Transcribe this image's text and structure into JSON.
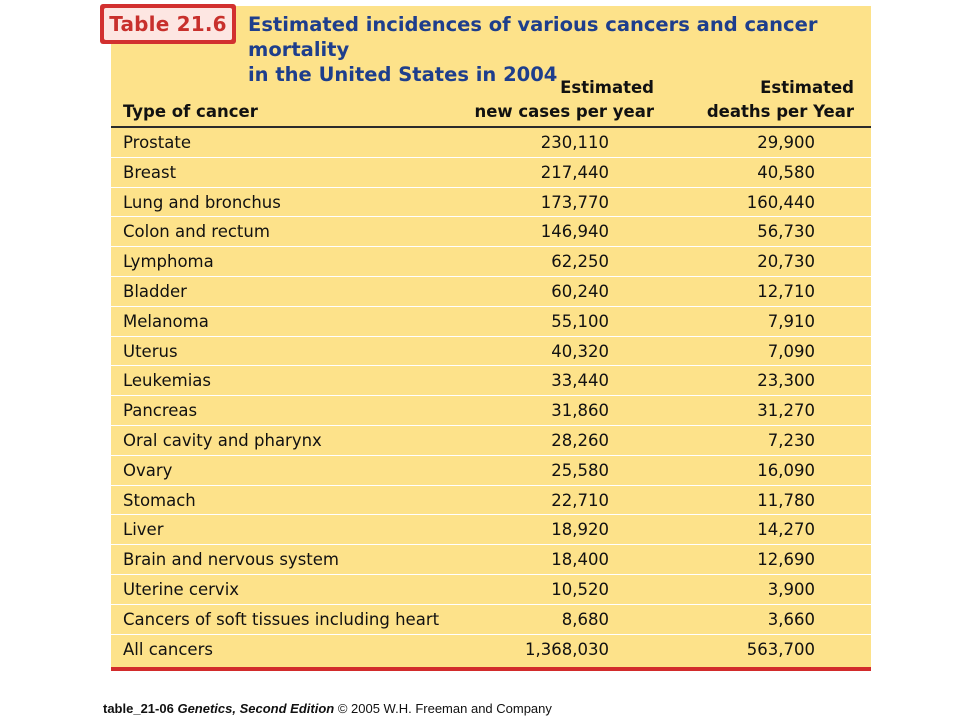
{
  "tab": {
    "label": "Table 21.6"
  },
  "caption": {
    "line1": "Estimated incidences of various cancers and cancer mortality",
    "line2": "in the United States in 2004"
  },
  "headers": {
    "type": "Type of cancer",
    "cases_line1": "Estimated",
    "cases_line2": "new cases per year",
    "deaths_line1": "Estimated",
    "deaths_line2": "deaths per Year"
  },
  "rows": [
    {
      "type": "Prostate",
      "cases": "230,110",
      "deaths": "29,900"
    },
    {
      "type": "Breast",
      "cases": "217,440",
      "deaths": "40,580"
    },
    {
      "type": "Lung and bronchus",
      "cases": "173,770",
      "deaths": "160,440"
    },
    {
      "type": "Colon and rectum",
      "cases": "146,940",
      "deaths": "56,730"
    },
    {
      "type": "Lymphoma",
      "cases": "62,250",
      "deaths": "20,730"
    },
    {
      "type": "Bladder",
      "cases": "60,240",
      "deaths": "12,710"
    },
    {
      "type": "Melanoma",
      "cases": "55,100",
      "deaths": "7,910"
    },
    {
      "type": "Uterus",
      "cases": "40,320",
      "deaths": "7,090"
    },
    {
      "type": "Leukemias",
      "cases": "33,440",
      "deaths": "23,300"
    },
    {
      "type": "Pancreas",
      "cases": "31,860",
      "deaths": "31,270"
    },
    {
      "type": "Oral cavity and pharynx",
      "cases": "28,260",
      "deaths": "7,230"
    },
    {
      "type": "Ovary",
      "cases": "25,580",
      "deaths": "16,090"
    },
    {
      "type": "Stomach",
      "cases": "22,710",
      "deaths": "11,780"
    },
    {
      "type": "Liver",
      "cases": "18,920",
      "deaths": "14,270"
    },
    {
      "type": "Brain and nervous system",
      "cases": "18,400",
      "deaths": "12,690"
    },
    {
      "type": "Uterine cervix",
      "cases": "10,520",
      "deaths": "3,900"
    },
    {
      "type": "Cancers of soft tissues including heart",
      "cases": "8,680",
      "deaths": "3,660"
    },
    {
      "type": "All cancers",
      "cases": "1,368,030",
      "deaths": "563,700"
    }
  ],
  "footer": {
    "id": "table_21-06",
    "book": "Genetics, Second Edition",
    "copyright": "© 2005 W.H. Freeman and Company"
  },
  "colors": {
    "panel": "#fde28a",
    "accent_red": "#d2302f",
    "caption_blue": "#1e3e8c"
  }
}
